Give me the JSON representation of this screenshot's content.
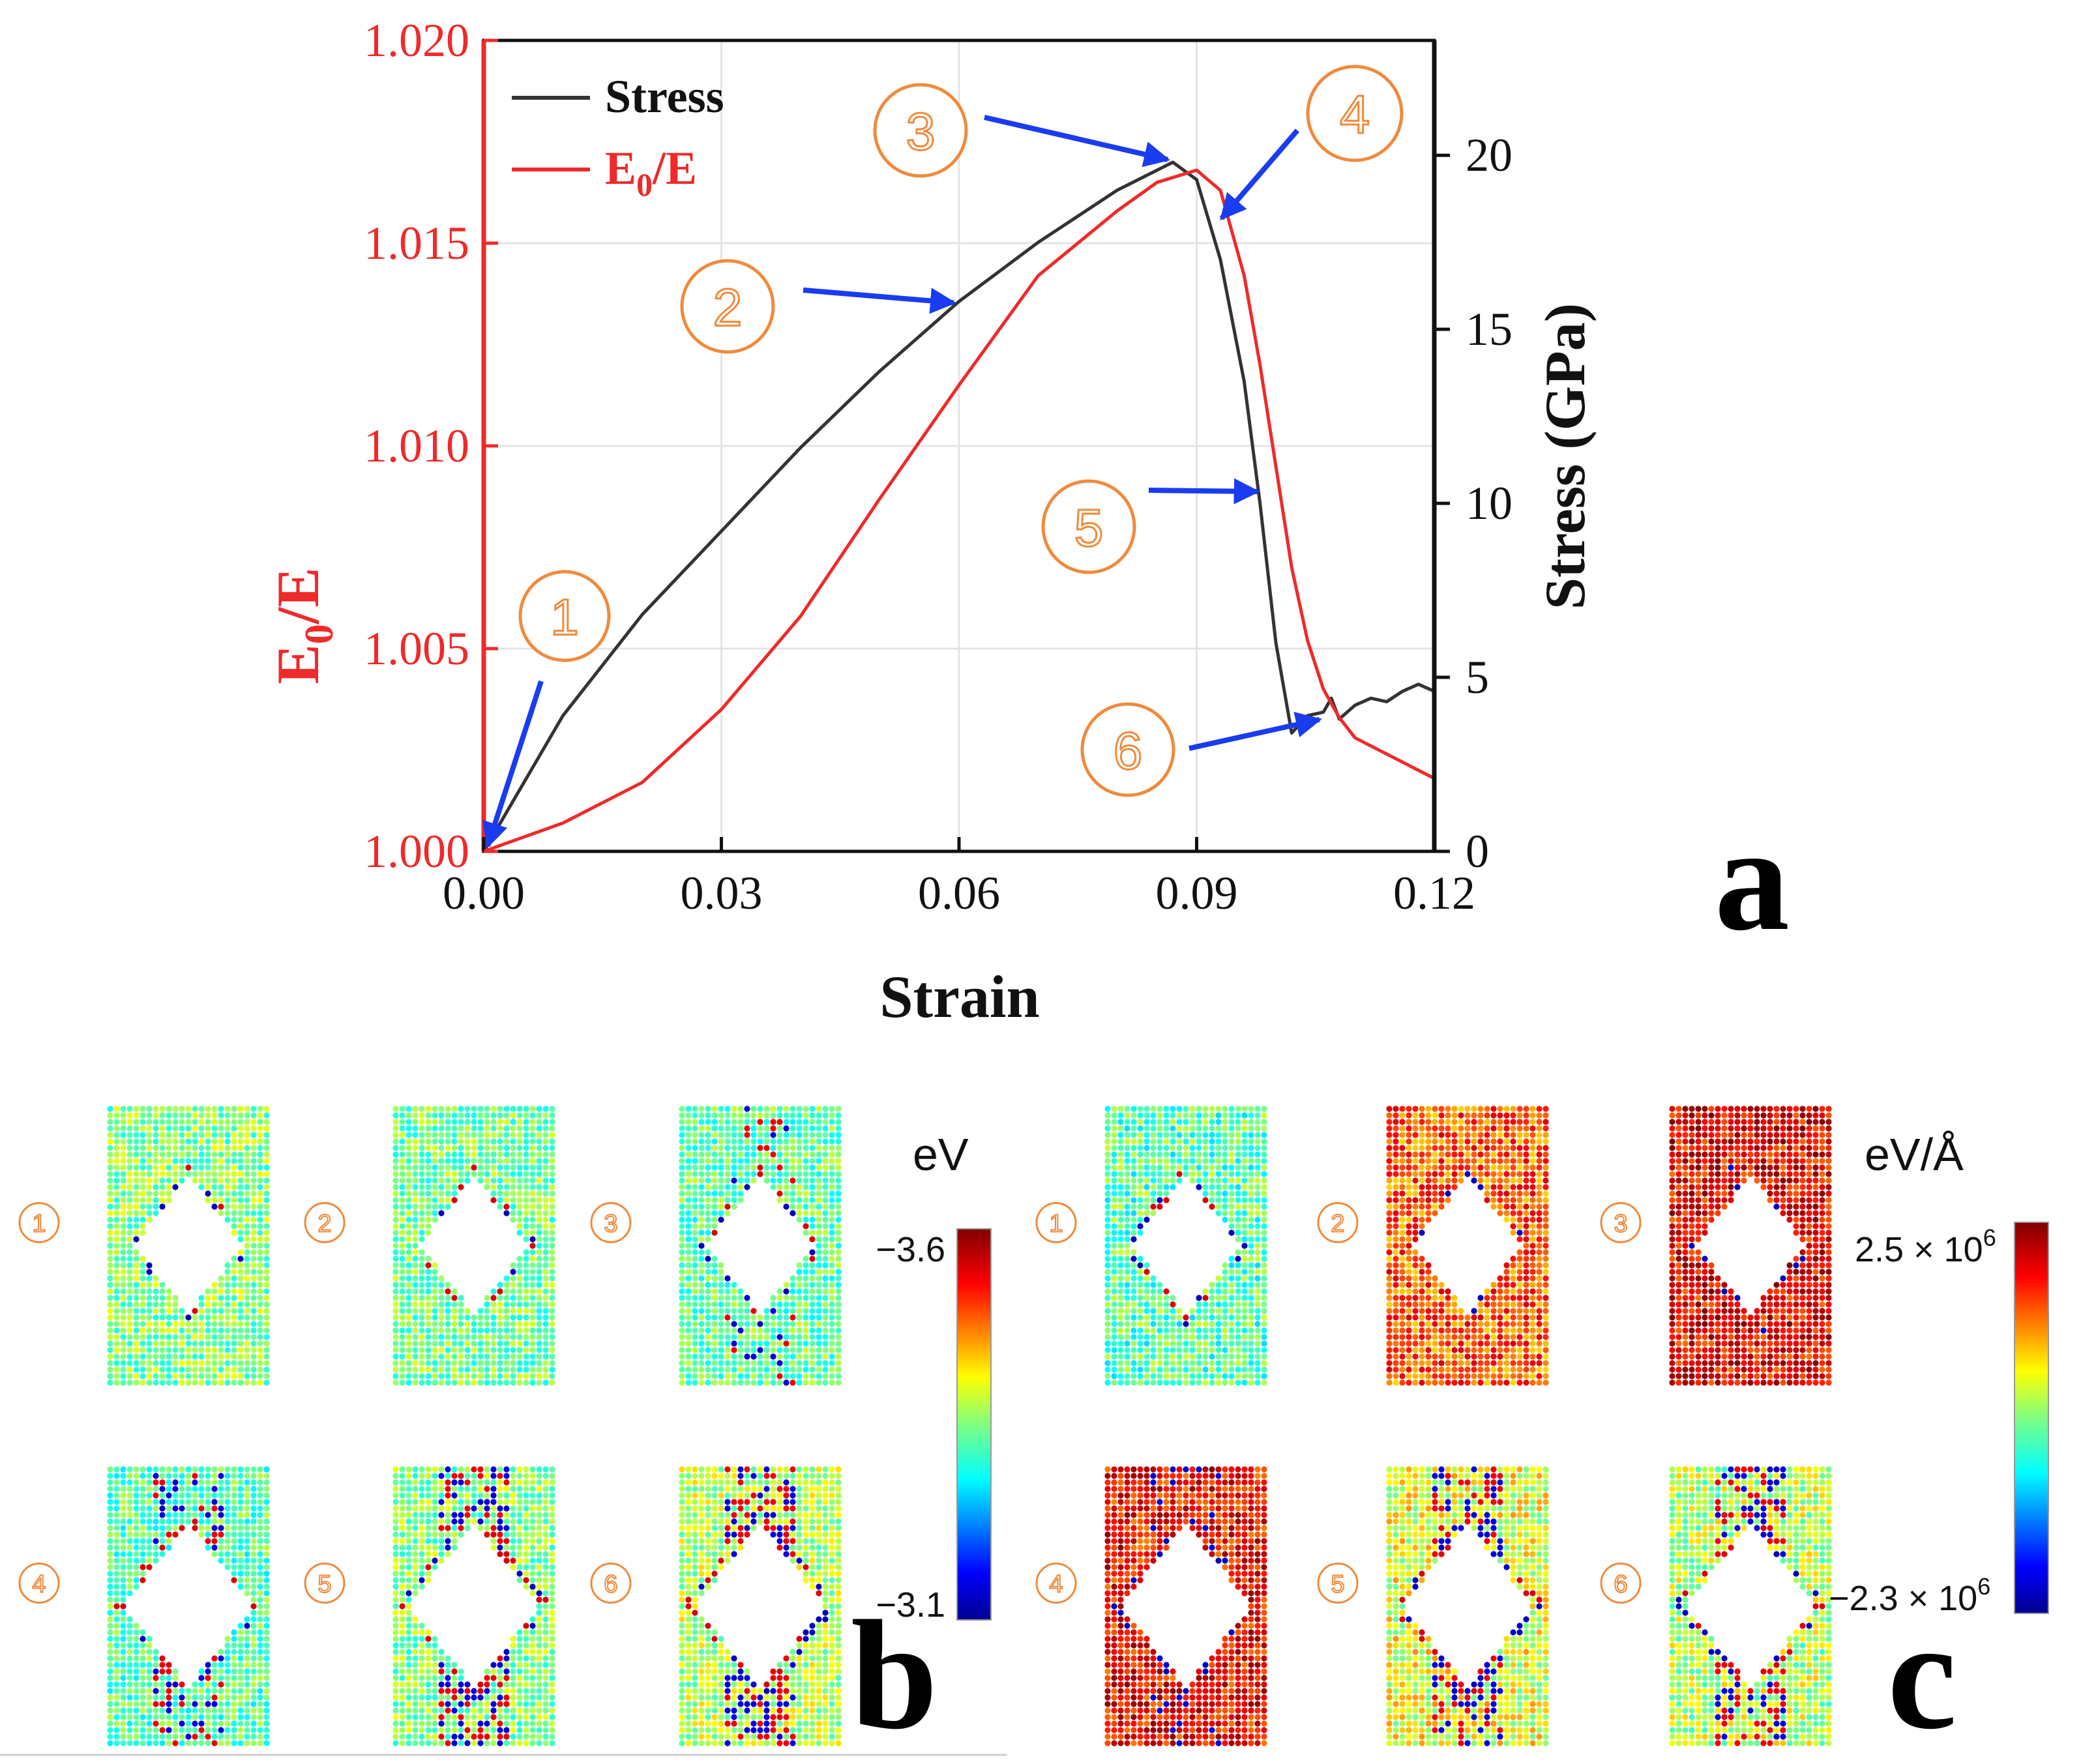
{
  "chart_data": [
    {
      "panel": "a",
      "type": "line",
      "xlabel": "Strain",
      "ylabel_left": "E0/E",
      "ylabel_right": "Stress (GPa)",
      "xlim": [
        0,
        0.12
      ],
      "ylim_left": [
        1.0,
        1.02
      ],
      "ylim_right": [
        0,
        23.3
      ],
      "x_ticks": [
        "0.00",
        "0.03",
        "0.06",
        "0.09",
        "0.12"
      ],
      "y_left_ticks": [
        "1.000",
        "1.005",
        "1.010",
        "1.015",
        "1.020"
      ],
      "y_right_ticks": [
        "0",
        "5",
        "10",
        "15",
        "20"
      ],
      "grid": true,
      "legend_position": "top-left",
      "colors": {
        "stress": "#333333",
        "e0e": "#ee2a2a",
        "axis_left": "#ee2a2a",
        "arrow": "#1a3cf0",
        "marker": "#f08a3c"
      },
      "series": [
        {
          "name": "Stress",
          "axis": "right",
          "x": [
            0,
            0.01,
            0.02,
            0.03,
            0.04,
            0.05,
            0.06,
            0.07,
            0.08,
            0.087,
            0.09,
            0.093,
            0.096,
            0.098,
            0.1,
            0.102,
            0.104,
            0.106,
            0.107,
            0.108,
            0.11,
            0.112,
            0.114,
            0.116,
            0.118,
            0.12
          ],
          "values": [
            0,
            3.9,
            6.8,
            9.2,
            11.6,
            13.8,
            15.8,
            17.5,
            19.0,
            19.8,
            19.3,
            17.0,
            13.5,
            10.0,
            6.0,
            3.4,
            3.9,
            4.0,
            4.4,
            3.8,
            4.2,
            4.4,
            4.3,
            4.6,
            4.8,
            4.6
          ]
        },
        {
          "name": "E0/E",
          "axis": "left",
          "x": [
            0,
            0.01,
            0.02,
            0.03,
            0.04,
            0.05,
            0.06,
            0.07,
            0.08,
            0.085,
            0.09,
            0.093,
            0.096,
            0.098,
            0.1,
            0.102,
            0.104,
            0.106,
            0.108,
            0.11,
            0.112,
            0.114,
            0.116,
            0.118,
            0.12
          ],
          "values": [
            1.0,
            1.0007,
            1.0017,
            1.0035,
            1.0058,
            1.0087,
            1.0115,
            1.0142,
            1.0158,
            1.0165,
            1.0168,
            1.0163,
            1.0142,
            1.012,
            1.0095,
            1.007,
            1.0052,
            1.004,
            1.0033,
            1.0028,
            1.0026,
            1.0024,
            1.0022,
            1.002,
            1.0018
          ]
        }
      ],
      "annotations": [
        {
          "label": "1",
          "x": 0.0,
          "y_left": 1.0,
          "note": "arrow to origin"
        },
        {
          "label": "2",
          "x": 0.06,
          "y_right": 15.8
        },
        {
          "label": "3",
          "x": 0.087,
          "y_right": 19.8
        },
        {
          "label": "4",
          "x": 0.092,
          "y_right": 18.0
        },
        {
          "label": "5",
          "x": 0.098,
          "y_right": 10.6
        },
        {
          "label": "6",
          "x": 0.106,
          "y_right": 3.9
        }
      ]
    },
    {
      "panel": "b",
      "type": "heatmap",
      "colorbar_label": "eV",
      "colorbar_max": "−3.6",
      "colorbar_min": "−3.1",
      "snapshots": [
        "1",
        "2",
        "3",
        "4",
        "5",
        "6"
      ]
    },
    {
      "panel": "c",
      "type": "heatmap",
      "colorbar_label": "eV/Å",
      "colorbar_max": "2.5 × 10",
      "colorbar_min": "−2.3 × 10",
      "colorbar_exp": "6",
      "snapshots": [
        "1",
        "2",
        "3",
        "4",
        "5",
        "6"
      ]
    }
  ],
  "texts": {
    "legend_stress": "Stress",
    "legend_e0e_main": "E",
    "legend_e0e_sub": "0",
    "legend_e0e_tail": "/E",
    "ylabel_left_main": "E",
    "ylabel_left_sub": "0",
    "ylabel_left_tail": "/E",
    "panel_a": "a",
    "panel_b": "b",
    "panel_c": "c"
  }
}
